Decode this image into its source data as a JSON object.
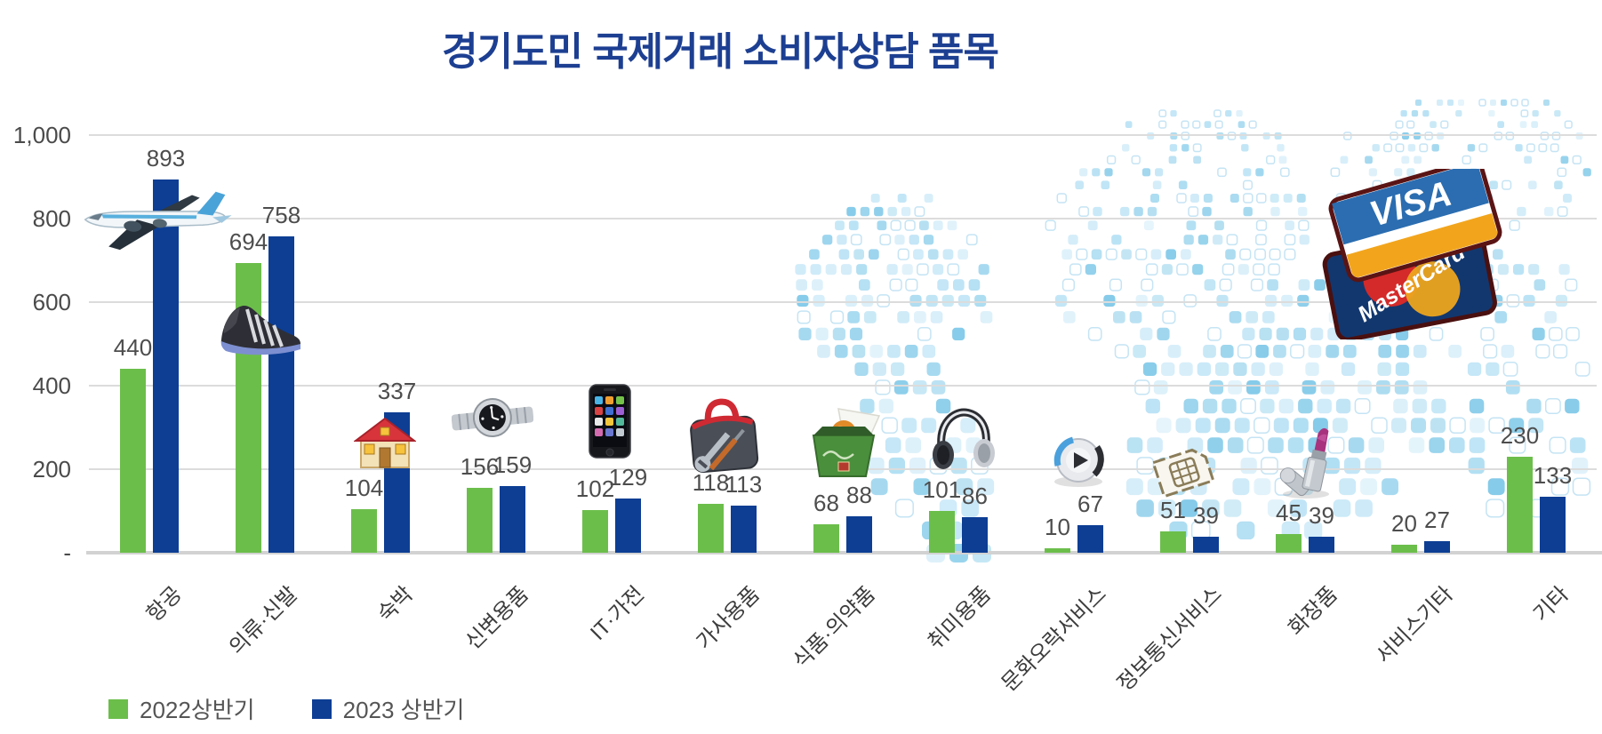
{
  "title": "경기도민 국제거래 소비자상담 품목",
  "chart_data": {
    "type": "bar",
    "categories": [
      "항공",
      "의류·신발",
      "숙박",
      "신변용품",
      "IT·가전",
      "가사용품",
      "식품·의약품",
      "취미용품",
      "문화오락서비스",
      "정보통신서비스",
      "화장품",
      "서비스기타",
      "기타"
    ],
    "series": [
      {
        "name": "2022상반기",
        "color": "#6cbe4b",
        "values": [
          440,
          694,
          104,
          156,
          102,
          118,
          68,
          101,
          10,
          51,
          45,
          20,
          230
        ]
      },
      {
        "name": "2023 상반기",
        "color": "#0d3e94",
        "values": [
          893,
          758,
          337,
          159,
          129,
          113,
          88,
          86,
          67,
          39,
          39,
          27,
          133
        ]
      }
    ],
    "ylim": [
      0,
      1000
    ],
    "yticks": [
      {
        "value": 1000,
        "label": "1,000"
      },
      {
        "value": 800,
        "label": "800"
      },
      {
        "value": 600,
        "label": "600"
      },
      {
        "value": 400,
        "label": "400"
      },
      {
        "value": 200,
        "label": "200"
      },
      {
        "value": 0,
        "label": "-"
      }
    ],
    "grid": true,
    "legend_position": "bottom-left",
    "value_labels": true
  },
  "decorations": {
    "visa_label": "VISA",
    "mastercard_label": "MasterCard",
    "icon_names": [
      "airplane",
      "sneaker",
      "house",
      "wristwatch",
      "smartphone",
      "toolbox",
      "food-box",
      "headphones",
      "media-player",
      "sim-card",
      "lipstick",
      "credit-cards",
      "world-map-mosaic"
    ]
  },
  "colors": {
    "title": "#1d3f92",
    "series_2022": "#6cbe4b",
    "series_2023": "#0d3e94",
    "gridline": "#dcdcdc",
    "axis_text": "#4a4a4a",
    "value_text": "#4d4d4d",
    "map_square": "#9ed3ec"
  }
}
